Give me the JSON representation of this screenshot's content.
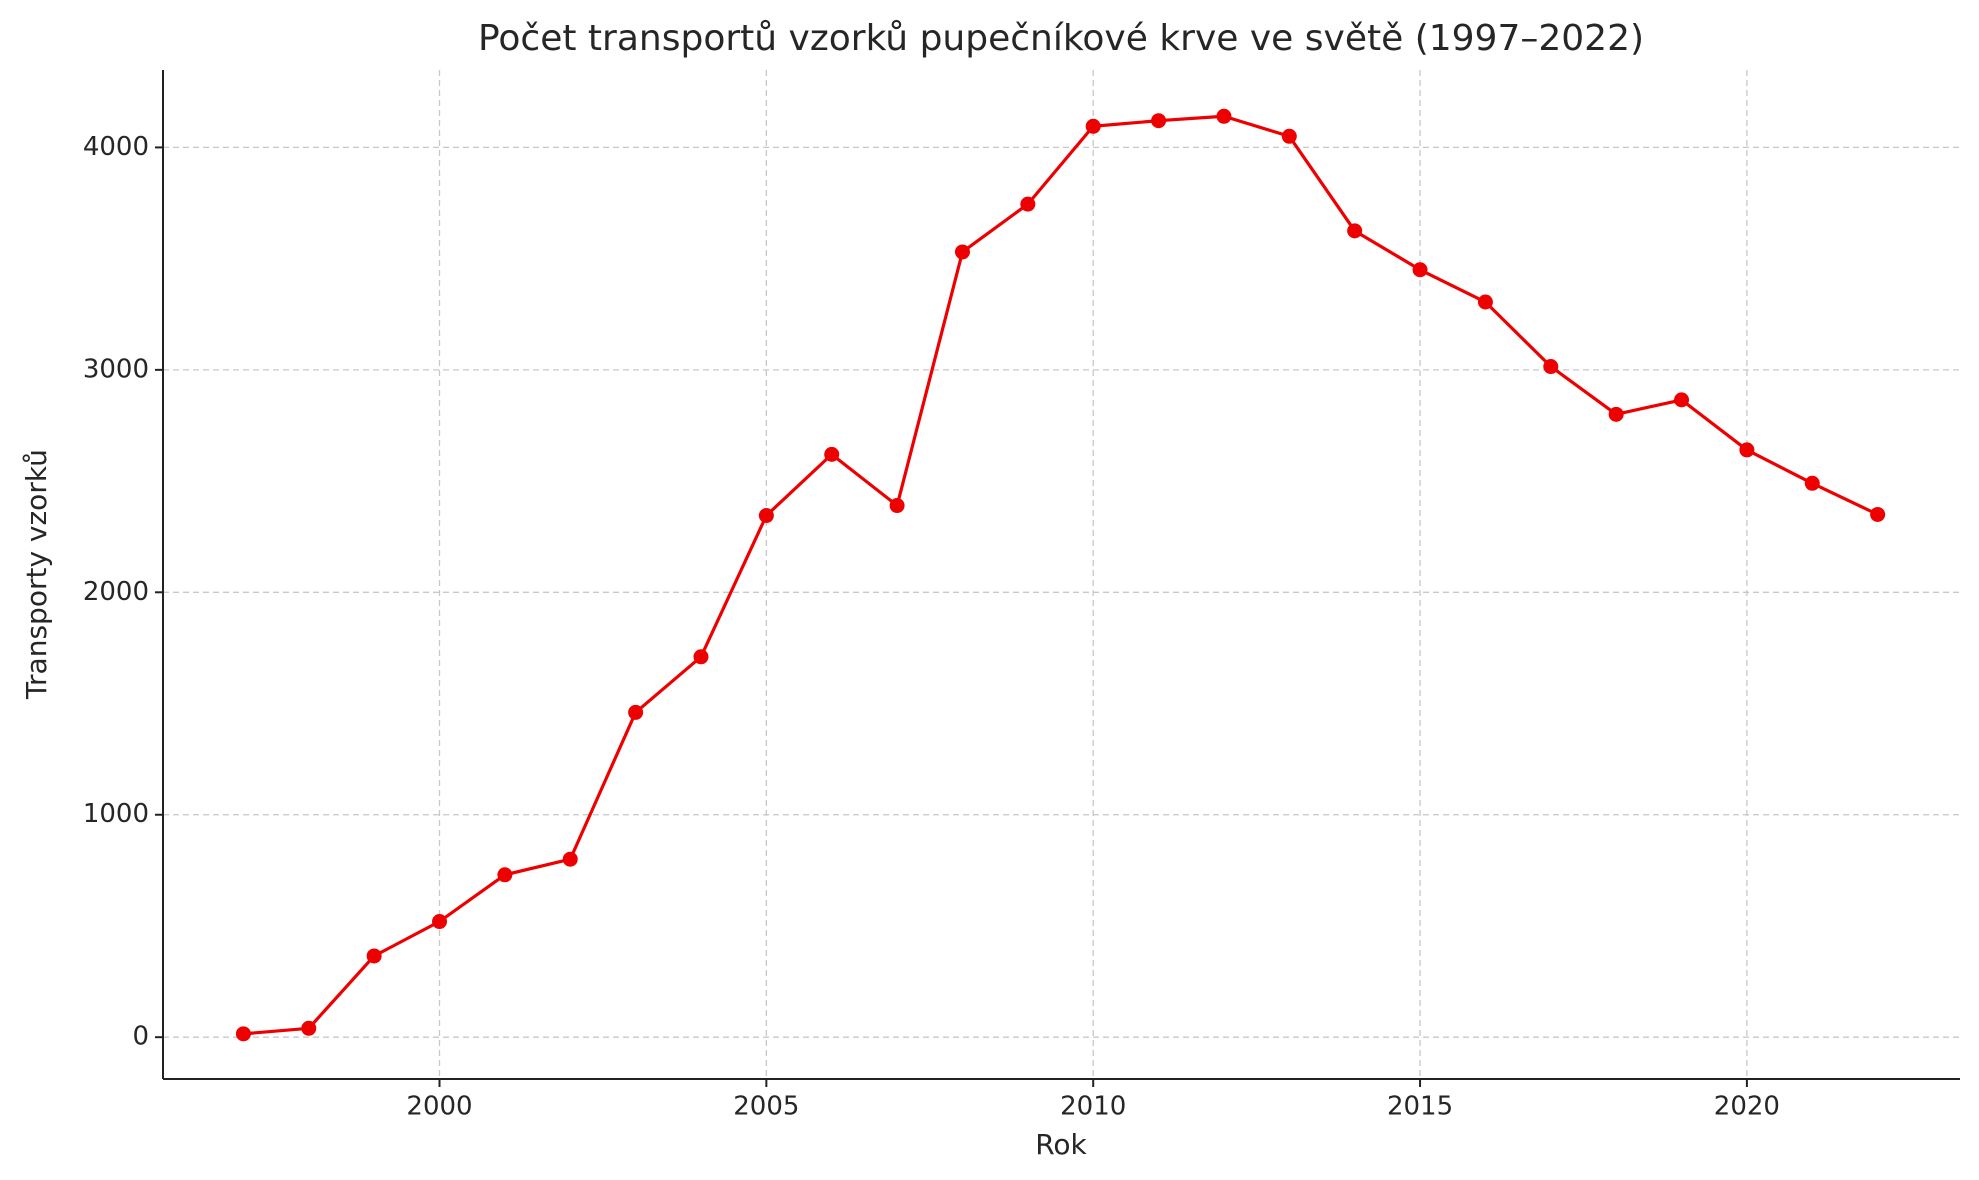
{
  "chart_data": {
    "type": "line",
    "title": "Počet transportů vzorků pupečníkové krve ve světě (1997–2022)",
    "x_label": "Rok",
    "y_label": "Transporty vzorků",
    "x": [
      1997,
      1998,
      1999,
      2000,
      2001,
      2002,
      2003,
      2004,
      2005,
      2006,
      2007,
      2008,
      2009,
      2010,
      2011,
      2012,
      2013,
      2014,
      2015,
      2016,
      2017,
      2018,
      2019,
      2020,
      2021,
      2022
    ],
    "series": [
      {
        "color": "#ee0000",
        "values": [
          15,
          40,
          365,
          520,
          730,
          800,
          1460,
          1710,
          2345,
          2620,
          2390,
          3530,
          3745,
          4095,
          4120,
          4140,
          4050,
          3625,
          3450,
          3305,
          3015,
          2800,
          2865,
          2640,
          2490,
          2350
        ]
      }
    ],
    "xlim": [
      1995.77,
      2023.26
    ],
    "xticks": [
      2000,
      2005,
      2010,
      2015,
      2020
    ],
    "ylim": [
      -188,
      4348
    ],
    "yticks": [
      0,
      1000,
      2000,
      3000,
      4000
    ],
    "grid": true
  }
}
